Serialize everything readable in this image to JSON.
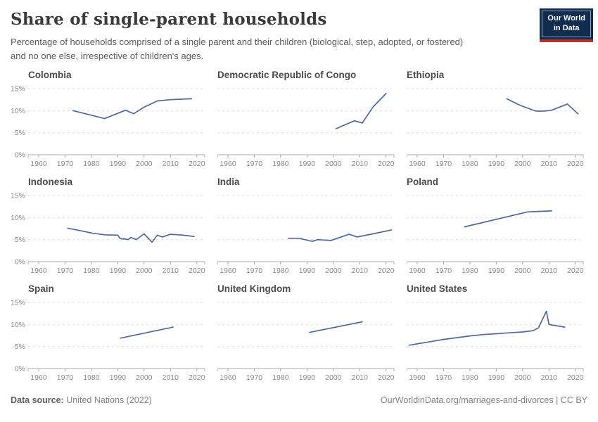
{
  "header": {
    "title": "Share of single-parent households",
    "subtitle": "Percentage of households comprised of a single parent and their children (biological, step, adopted, or fostered) and no one else, irrespective of children's ages.",
    "logo": {
      "line1": "Our World",
      "line2": "in Data",
      "bg_color": "#102d50",
      "accent_color": "#b0332c"
    }
  },
  "axes": {
    "xlim": [
      1956,
      2023
    ],
    "ylim": [
      0,
      15
    ],
    "x_ticks": [
      1960,
      1970,
      1980,
      1990,
      2000,
      2010,
      2020
    ],
    "y_grid_values": [
      0,
      5,
      10,
      15
    ],
    "y_tick_suffix": "%",
    "grid": "dashed",
    "legend": "none",
    "line_color": "#4C6A9C",
    "grid_color": "#dedede",
    "axis_color": "#a8a8a8",
    "tick_label_color": "#8a8a8a"
  },
  "chart_data": [
    {
      "type": "line",
      "title": "Colombia",
      "unit": "%",
      "x": [
        1973,
        1985,
        1993,
        1996,
        2000,
        2005,
        2010,
        2018
      ],
      "y": [
        10.0,
        8.2,
        10.1,
        9.3,
        10.8,
        12.2,
        12.5,
        12.7
      ]
    },
    {
      "type": "line",
      "title": "Democratic Republic of Congo",
      "unit": "%",
      "x": [
        2001,
        2008,
        2011,
        2015,
        2020
      ],
      "y": [
        5.9,
        7.7,
        7.2,
        10.8,
        13.9
      ]
    },
    {
      "type": "line",
      "title": "Ethiopia",
      "unit": "%",
      "x": [
        1994,
        1998,
        2000,
        2005,
        2008,
        2011,
        2017,
        2021
      ],
      "y": [
        12.7,
        11.5,
        11.0,
        9.9,
        9.9,
        10.1,
        11.5,
        9.3
      ]
    },
    {
      "type": "line",
      "title": "Indonesia",
      "unit": "%",
      "x": [
        1971,
        1976,
        1980,
        1985,
        1990,
        1991,
        1993,
        1994,
        1995,
        1997,
        2000,
        2003,
        2005,
        2007,
        2010,
        2013,
        2015,
        2019
      ],
      "y": [
        7.6,
        7.0,
        6.5,
        6.1,
        6.0,
        5.2,
        5.1,
        5.0,
        5.5,
        5.0,
        6.3,
        4.4,
        6.0,
        5.6,
        6.2,
        6.1,
        6.0,
        5.7
      ]
    },
    {
      "type": "line",
      "title": "India",
      "unit": "%",
      "x": [
        1983,
        1987,
        1992,
        1994,
        1999,
        2006,
        2009,
        2015,
        2022
      ],
      "y": [
        5.3,
        5.3,
        4.6,
        5.0,
        4.8,
        6.2,
        5.6,
        6.3,
        7.2
      ]
    },
    {
      "type": "line",
      "title": "Poland",
      "unit": "%",
      "x": [
        1978,
        2002,
        2011
      ],
      "y": [
        7.9,
        11.3,
        11.5
      ]
    },
    {
      "type": "line",
      "title": "Spain",
      "unit": "%",
      "x": [
        1991,
        2011
      ],
      "y": [
        6.9,
        9.4
      ]
    },
    {
      "type": "line",
      "title": "United Kingdom",
      "unit": "%",
      "x": [
        1991,
        2011
      ],
      "y": [
        8.2,
        10.6
      ]
    },
    {
      "type": "line",
      "title": "United States",
      "unit": "%",
      "x": [
        1957,
        1960,
        1965,
        1970,
        1975,
        1980,
        1985,
        1990,
        1995,
        2000,
        2004,
        2006,
        2009,
        2010,
        2011,
        2016
      ],
      "y": [
        5.3,
        5.6,
        6.1,
        6.6,
        7.0,
        7.4,
        7.7,
        7.9,
        8.1,
        8.3,
        8.6,
        9.2,
        13.0,
        10.0,
        9.9,
        9.4
      ]
    }
  ],
  "footer": {
    "source_label": "Data source:",
    "source_value": "United Nations (2022)",
    "credit": "OurWorldinData.org/marriages-and-divorces | CC BY"
  }
}
